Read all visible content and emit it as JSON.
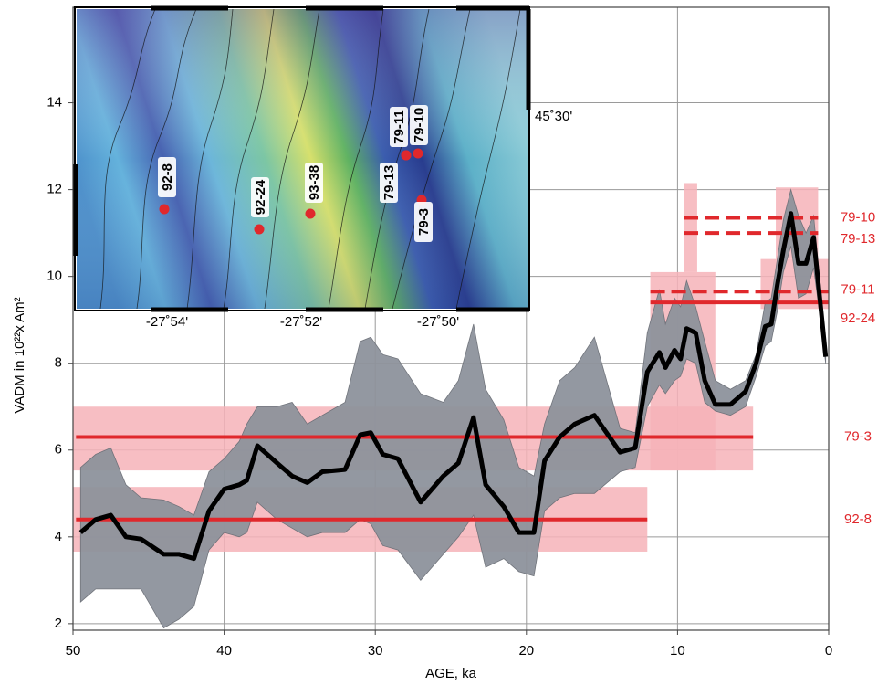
{
  "chart_data": {
    "type": "line",
    "x_label": "AGE, ka",
    "y_label": "VADM in 10²²x Am²",
    "xlim": [
      50,
      0
    ],
    "ylim": [
      1.85,
      16.2
    ],
    "xticks": [
      50,
      40,
      30,
      20,
      10,
      0
    ],
    "yticks": [
      2,
      4,
      6,
      8,
      10,
      12,
      14
    ],
    "grid": true,
    "x": [
      49.5,
      48.5,
      47.5,
      46.5,
      45.5,
      44,
      43,
      42,
      41,
      40,
      39,
      38.5,
      37.8,
      36.5,
      35.5,
      34.5,
      33.5,
      32,
      31,
      30.3,
      29.5,
      28.5,
      27,
      25.5,
      24.5,
      23.5,
      22.7,
      21.5,
      20.5,
      19.5,
      18.8,
      17.8,
      16.8,
      15.5,
      13.8,
      12.8,
      12,
      11.2,
      10.8,
      10.2,
      9.8,
      9.4,
      8.8,
      8.2,
      7.5,
      6.5,
      5.5,
      4.8,
      4.2,
      3.8,
      3.4,
      3.0,
      2.5,
      2.0,
      1.5,
      1.0,
      0.5,
      0.2
    ],
    "series": [
      {
        "color": "#000000",
        "values": [
          4.1,
          4.4,
          4.5,
          4.0,
          3.95,
          3.6,
          3.6,
          3.5,
          4.6,
          5.1,
          5.2,
          5.3,
          6.1,
          5.7,
          5.4,
          5.25,
          5.5,
          5.55,
          6.35,
          6.4,
          5.9,
          5.8,
          4.8,
          5.4,
          5.7,
          6.75,
          5.2,
          4.7,
          4.1,
          4.1,
          5.75,
          6.3,
          6.6,
          6.8,
          5.95,
          6.05,
          7.8,
          8.25,
          7.9,
          8.3,
          8.1,
          8.8,
          8.7,
          7.6,
          7.05,
          7.05,
          7.35,
          8.0,
          8.85,
          8.9,
          9.8,
          10.6,
          11.45,
          10.3,
          10.3,
          10.9,
          9.2,
          8.15
        ]
      }
    ],
    "band": {
      "color": "#8e939c",
      "upper": [
        5.6,
        5.9,
        6.05,
        5.2,
        4.9,
        4.85,
        4.7,
        4.5,
        5.5,
        5.8,
        6.2,
        6.6,
        7.0,
        7.0,
        7.1,
        6.6,
        6.8,
        7.1,
        8.5,
        8.6,
        8.2,
        8.1,
        7.3,
        7.1,
        7.6,
        8.9,
        7.4,
        6.7,
        5.6,
        5.4,
        6.6,
        7.6,
        7.9,
        8.6,
        6.5,
        6.4,
        8.7,
        9.7,
        8.9,
        9.5,
        9.3,
        9.9,
        9.3,
        8.5,
        7.6,
        7.4,
        7.6,
        8.2,
        9.4,
        9.5,
        10.4,
        11.3,
        12.0,
        11.4,
        11.0,
        11.4,
        9.6,
        8.3
      ],
      "lower": [
        2.5,
        2.8,
        2.8,
        2.8,
        2.8,
        1.9,
        2.1,
        2.4,
        3.7,
        4.1,
        4.0,
        4.1,
        4.8,
        4.4,
        4.2,
        4.0,
        4.1,
        4.1,
        4.4,
        4.3,
        3.8,
        3.7,
        3.0,
        3.6,
        4.0,
        4.5,
        3.3,
        3.5,
        3.2,
        3.1,
        4.6,
        4.9,
        5.0,
        5.0,
        5.5,
        5.6,
        7.0,
        7.5,
        7.3,
        7.6,
        7.7,
        8.1,
        8.0,
        7.1,
        6.9,
        6.8,
        7.0,
        7.7,
        8.4,
        8.5,
        9.2,
        10.1,
        10.7,
        9.5,
        9.6,
        10.2,
        8.9,
        8.0
      ]
    },
    "results_color": "#e0282c",
    "results": [
      {
        "label": "79-10",
        "value": 11.35,
        "age_range": [
          9.6,
          0.7
        ],
        "dashed": true
      },
      {
        "label": "79-13",
        "value": 11.0,
        "age_range": [
          9.6,
          0.7
        ],
        "dashed": true
      },
      {
        "label": "79-11",
        "value": 9.65,
        "age_range": [
          11.8,
          0
        ],
        "dashed": true
      },
      {
        "label": "92-24",
        "value": 9.4,
        "age_range": [
          11.8,
          0
        ],
        "dashed": false
      },
      {
        "label": "79-3",
        "value": 6.3,
        "age_range": [
          49.8,
          5
        ],
        "dashed": false
      },
      {
        "label": "92-8",
        "value": 4.4,
        "age_range": [
          49.8,
          12
        ],
        "dashed": false
      }
    ],
    "boxes_color": "#f6b3b9",
    "boxes": [
      {
        "age_range": [
          50,
          12
        ],
        "value_range": [
          3.66,
          5.15
        ]
      },
      {
        "age_range": [
          50,
          5
        ],
        "value_range": [
          5.53,
          7.0
        ]
      },
      {
        "age_range": [
          11.8,
          7.5
        ],
        "value_range": [
          5.53,
          10.1
        ]
      },
      {
        "age_range": [
          9.6,
          8.7
        ],
        "value_range": [
          10.1,
          12.15
        ]
      },
      {
        "age_range": [
          4.5,
          0
        ],
        "value_range": [
          9.25,
          10.4
        ]
      },
      {
        "age_range": [
          3.5,
          0.7
        ],
        "value_range": [
          10.4,
          12.05
        ]
      }
    ],
    "inset": {
      "sites": [
        "92-8",
        "92-24",
        "93-38",
        "79-13",
        "79-11",
        "79-10",
        "79-3"
      ],
      "lon_labels": [
        "-27˚54'",
        "-27˚52'",
        "-27˚50'"
      ],
      "lat_label": "45˚30'"
    }
  }
}
